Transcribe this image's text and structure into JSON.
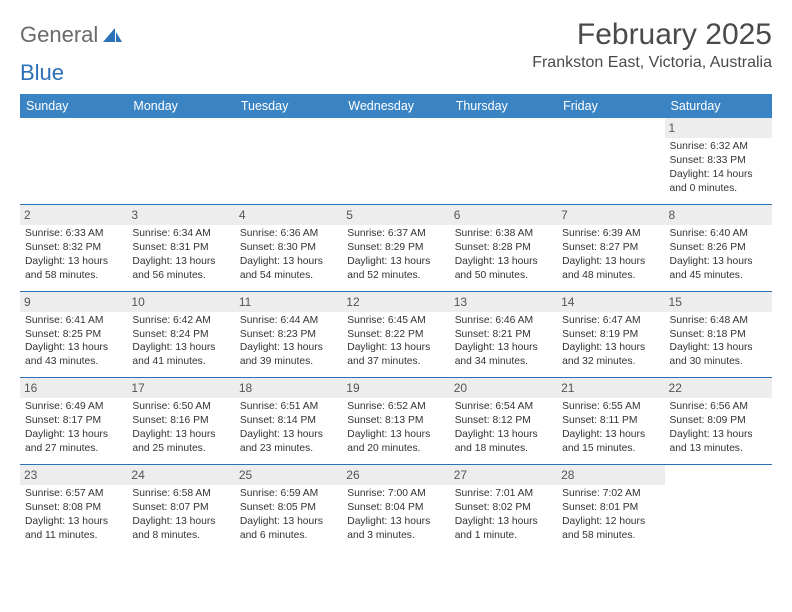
{
  "logo": {
    "text_part1": "General",
    "text_part2": "Blue"
  },
  "title": "February 2025",
  "location": "Frankston East, Victoria, Australia",
  "colors": {
    "header_bg": "#3b84c4",
    "row_border": "#2a71b8",
    "daynum_bg": "#ededed",
    "logo_gray": "#6a6a6a",
    "logo_blue": "#2a71b8",
    "title_color": "#4a4a4a"
  },
  "weekdays": [
    "Sunday",
    "Monday",
    "Tuesday",
    "Wednesday",
    "Thursday",
    "Friday",
    "Saturday"
  ],
  "weeks": [
    [
      {
        "n": "",
        "sr": "",
        "ss": "",
        "dl": ""
      },
      {
        "n": "",
        "sr": "",
        "ss": "",
        "dl": ""
      },
      {
        "n": "",
        "sr": "",
        "ss": "",
        "dl": ""
      },
      {
        "n": "",
        "sr": "",
        "ss": "",
        "dl": ""
      },
      {
        "n": "",
        "sr": "",
        "ss": "",
        "dl": ""
      },
      {
        "n": "",
        "sr": "",
        "ss": "",
        "dl": ""
      },
      {
        "n": "1",
        "sr": "Sunrise: 6:32 AM",
        "ss": "Sunset: 8:33 PM",
        "dl": "Daylight: 14 hours and 0 minutes."
      }
    ],
    [
      {
        "n": "2",
        "sr": "Sunrise: 6:33 AM",
        "ss": "Sunset: 8:32 PM",
        "dl": "Daylight: 13 hours and 58 minutes."
      },
      {
        "n": "3",
        "sr": "Sunrise: 6:34 AM",
        "ss": "Sunset: 8:31 PM",
        "dl": "Daylight: 13 hours and 56 minutes."
      },
      {
        "n": "4",
        "sr": "Sunrise: 6:36 AM",
        "ss": "Sunset: 8:30 PM",
        "dl": "Daylight: 13 hours and 54 minutes."
      },
      {
        "n": "5",
        "sr": "Sunrise: 6:37 AM",
        "ss": "Sunset: 8:29 PM",
        "dl": "Daylight: 13 hours and 52 minutes."
      },
      {
        "n": "6",
        "sr": "Sunrise: 6:38 AM",
        "ss": "Sunset: 8:28 PM",
        "dl": "Daylight: 13 hours and 50 minutes."
      },
      {
        "n": "7",
        "sr": "Sunrise: 6:39 AM",
        "ss": "Sunset: 8:27 PM",
        "dl": "Daylight: 13 hours and 48 minutes."
      },
      {
        "n": "8",
        "sr": "Sunrise: 6:40 AM",
        "ss": "Sunset: 8:26 PM",
        "dl": "Daylight: 13 hours and 45 minutes."
      }
    ],
    [
      {
        "n": "9",
        "sr": "Sunrise: 6:41 AM",
        "ss": "Sunset: 8:25 PM",
        "dl": "Daylight: 13 hours and 43 minutes."
      },
      {
        "n": "10",
        "sr": "Sunrise: 6:42 AM",
        "ss": "Sunset: 8:24 PM",
        "dl": "Daylight: 13 hours and 41 minutes."
      },
      {
        "n": "11",
        "sr": "Sunrise: 6:44 AM",
        "ss": "Sunset: 8:23 PM",
        "dl": "Daylight: 13 hours and 39 minutes."
      },
      {
        "n": "12",
        "sr": "Sunrise: 6:45 AM",
        "ss": "Sunset: 8:22 PM",
        "dl": "Daylight: 13 hours and 37 minutes."
      },
      {
        "n": "13",
        "sr": "Sunrise: 6:46 AM",
        "ss": "Sunset: 8:21 PM",
        "dl": "Daylight: 13 hours and 34 minutes."
      },
      {
        "n": "14",
        "sr": "Sunrise: 6:47 AM",
        "ss": "Sunset: 8:19 PM",
        "dl": "Daylight: 13 hours and 32 minutes."
      },
      {
        "n": "15",
        "sr": "Sunrise: 6:48 AM",
        "ss": "Sunset: 8:18 PM",
        "dl": "Daylight: 13 hours and 30 minutes."
      }
    ],
    [
      {
        "n": "16",
        "sr": "Sunrise: 6:49 AM",
        "ss": "Sunset: 8:17 PM",
        "dl": "Daylight: 13 hours and 27 minutes."
      },
      {
        "n": "17",
        "sr": "Sunrise: 6:50 AM",
        "ss": "Sunset: 8:16 PM",
        "dl": "Daylight: 13 hours and 25 minutes."
      },
      {
        "n": "18",
        "sr": "Sunrise: 6:51 AM",
        "ss": "Sunset: 8:14 PM",
        "dl": "Daylight: 13 hours and 23 minutes."
      },
      {
        "n": "19",
        "sr": "Sunrise: 6:52 AM",
        "ss": "Sunset: 8:13 PM",
        "dl": "Daylight: 13 hours and 20 minutes."
      },
      {
        "n": "20",
        "sr": "Sunrise: 6:54 AM",
        "ss": "Sunset: 8:12 PM",
        "dl": "Daylight: 13 hours and 18 minutes."
      },
      {
        "n": "21",
        "sr": "Sunrise: 6:55 AM",
        "ss": "Sunset: 8:11 PM",
        "dl": "Daylight: 13 hours and 15 minutes."
      },
      {
        "n": "22",
        "sr": "Sunrise: 6:56 AM",
        "ss": "Sunset: 8:09 PM",
        "dl": "Daylight: 13 hours and 13 minutes."
      }
    ],
    [
      {
        "n": "23",
        "sr": "Sunrise: 6:57 AM",
        "ss": "Sunset: 8:08 PM",
        "dl": "Daylight: 13 hours and 11 minutes."
      },
      {
        "n": "24",
        "sr": "Sunrise: 6:58 AM",
        "ss": "Sunset: 8:07 PM",
        "dl": "Daylight: 13 hours and 8 minutes."
      },
      {
        "n": "25",
        "sr": "Sunrise: 6:59 AM",
        "ss": "Sunset: 8:05 PM",
        "dl": "Daylight: 13 hours and 6 minutes."
      },
      {
        "n": "26",
        "sr": "Sunrise: 7:00 AM",
        "ss": "Sunset: 8:04 PM",
        "dl": "Daylight: 13 hours and 3 minutes."
      },
      {
        "n": "27",
        "sr": "Sunrise: 7:01 AM",
        "ss": "Sunset: 8:02 PM",
        "dl": "Daylight: 13 hours and 1 minute."
      },
      {
        "n": "28",
        "sr": "Sunrise: 7:02 AM",
        "ss": "Sunset: 8:01 PM",
        "dl": "Daylight: 12 hours and 58 minutes."
      },
      {
        "n": "",
        "sr": "",
        "ss": "",
        "dl": ""
      }
    ]
  ]
}
